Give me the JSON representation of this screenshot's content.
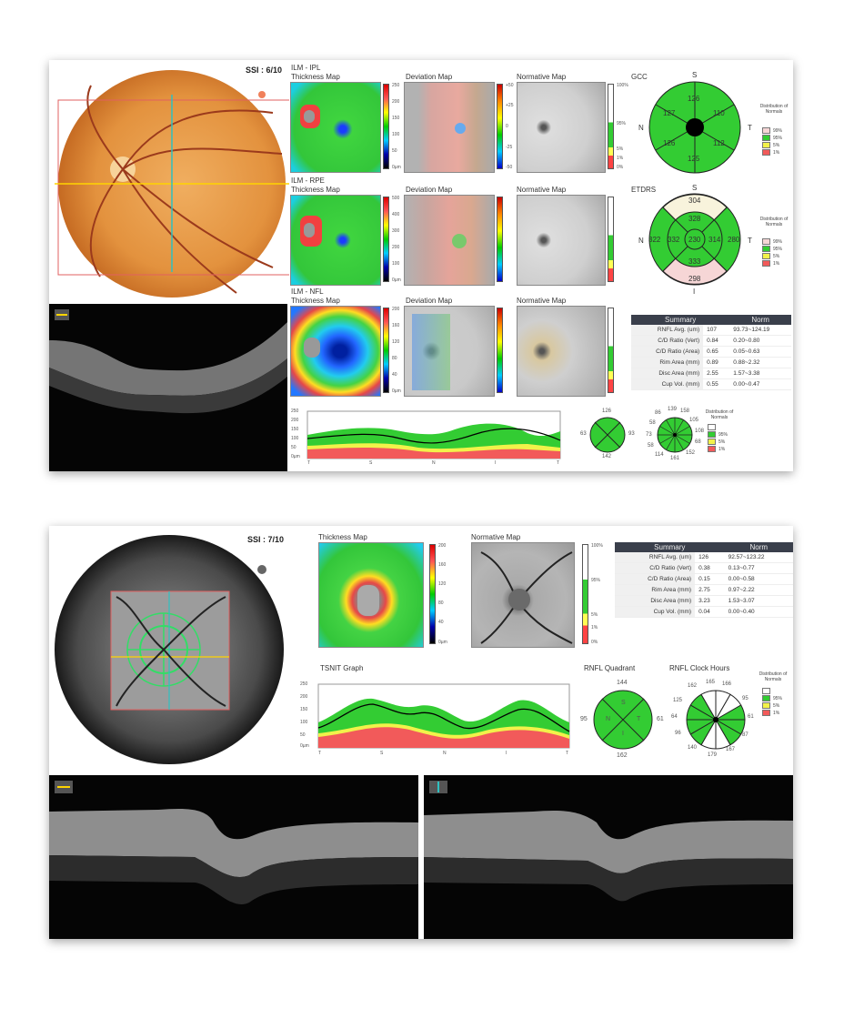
{
  "top": {
    "ssi": "SSI : 6/10",
    "row1": {
      "layer": "ILM - IPL",
      "thickness": "Thickness Map",
      "deviation": "Deviation Map",
      "normative": "Normative Map",
      "chart_label": "GCC",
      "scale": [
        "250",
        "200",
        "150",
        "100",
        "50",
        "0µm"
      ],
      "gcc": {
        "S": "S",
        "N": "N",
        "T": "T",
        "I": "I",
        "vals": [
          "126",
          "110",
          "112",
          "125",
          "126",
          "127"
        ]
      }
    },
    "row2": {
      "layer": "ILM - RPE",
      "thickness": "Thickness Map",
      "deviation": "Deviation Map",
      "normative": "Normative Map",
      "chart_label": "ETDRS",
      "scale": [
        "500",
        "400",
        "300",
        "200",
        "100",
        "0µm"
      ],
      "etdrs": {
        "S": "S",
        "N": "N",
        "T": "T",
        "I": "I",
        "center": "230",
        "inner": [
          "328",
          "314",
          "333",
          "332"
        ],
        "outer": [
          "304",
          "280",
          "298",
          "322"
        ]
      }
    },
    "row3": {
      "layer": "ILM - NFL",
      "thickness": "Thickness Map",
      "deviation": "Deviation Map",
      "normative": "Normative Map",
      "scale": [
        "200",
        "160",
        "120",
        "80",
        "40",
        "0µm"
      ]
    },
    "dev_scale": [
      "+50",
      "+25",
      "0",
      "-25",
      "-50"
    ],
    "norm_scale": [
      "100%",
      "95%",
      "5%",
      "1%",
      "0%"
    ],
    "dist_title": "Distribution of Normals",
    "dist_items": [
      "99%",
      "95%",
      "5%",
      "1%"
    ],
    "summary": {
      "head": [
        "Summary",
        "Norm"
      ],
      "rows": [
        [
          "RNFL Avg. (um)",
          "107",
          "93.73~124.19"
        ],
        [
          "C/D Ratio (Vert)",
          "0.84",
          "0.20~0.80"
        ],
        [
          "C/D Ratio (Area)",
          "0.65",
          "0.05~0.63"
        ],
        [
          "Rim Area (mm)",
          "0.89",
          "0.88~2.32"
        ],
        [
          "Disc Area (mm)",
          "2.55",
          "1.57~3.38"
        ],
        [
          "Cup Vol. (mm)",
          "0.55",
          "0.00~0.47"
        ]
      ]
    },
    "tsnit": {
      "y": [
        "250",
        "200",
        "150",
        "100",
        "50",
        "0µm"
      ],
      "x": [
        "T",
        "S",
        "N",
        "I",
        "T"
      ]
    },
    "quad": {
      "top": "126",
      "left": "63",
      "right": "93",
      "bottom": "142",
      "S": "S",
      "N": "N",
      "T": "T",
      "I": "I"
    },
    "clock": [
      "86",
      "139",
      "158",
      "105",
      "108",
      "68",
      "152",
      "161",
      "114",
      "58",
      "73",
      "58"
    ],
    "dist2_items": [
      "95%",
      "5%",
      "1%"
    ]
  },
  "bottom": {
    "ssi": "SSI : 7/10",
    "thickness": "Thickness Map",
    "normative": "Normative Map",
    "scale": [
      "200",
      "160",
      "120",
      "80",
      "40",
      "0µm"
    ],
    "norm_scale": [
      "100%",
      "95%",
      "5%",
      "1%",
      "0%"
    ],
    "summary": {
      "head": [
        "Summary",
        "Norm"
      ],
      "rows": [
        [
          "RNFL Avg. (um)",
          "126",
          "92.57~123.22"
        ],
        [
          "C/D Ratio (Vert)",
          "0.38",
          "0.13~0.77"
        ],
        [
          "C/D Ratio (Area)",
          "0.15",
          "0.00~0.58"
        ],
        [
          "Rim Area (mm)",
          "2.75",
          "0.97~2.22"
        ],
        [
          "Disc Area (mm)",
          "3.23",
          "1.53~3.07"
        ],
        [
          "Cup Vol. (mm)",
          "0.04",
          "0.00~0.40"
        ]
      ]
    },
    "tsnit_title": "TSNIT Graph",
    "tsnit": {
      "y": [
        "250",
        "200",
        "150",
        "100",
        "50",
        "0µm"
      ],
      "x": [
        "T",
        "S",
        "N",
        "I",
        "T"
      ]
    },
    "quad_title": "RNFL Quadrant",
    "quad": {
      "top": "144",
      "left": "95",
      "right": "61",
      "bottom": "162",
      "S": "S",
      "N": "N",
      "T": "T",
      "I": "I"
    },
    "clock_title": "RNFL Clock Hours",
    "clock": [
      "165",
      "166",
      "95",
      "61",
      "87",
      "167",
      "179",
      "140",
      "96",
      "64",
      "125",
      "162"
    ],
    "dist_title": "Distribution of Normals",
    "dist_items": [
      "95%",
      "5%",
      "1%"
    ]
  },
  "colors": {
    "green": "#33cc33",
    "yellow": "#f2f24a",
    "red": "#f25a5a",
    "pink": "#f6d6d6",
    "fundus": "#e89a45"
  }
}
